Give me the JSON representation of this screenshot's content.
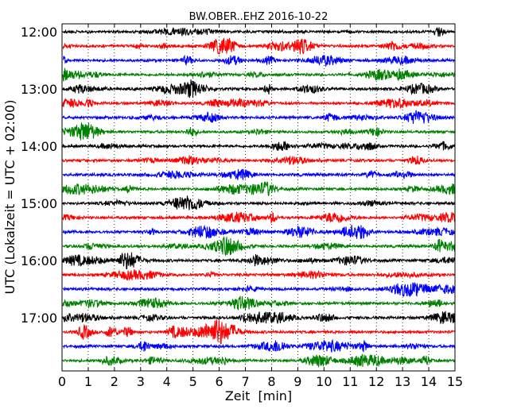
{
  "chart_data": {
    "type": "line",
    "title": "BW.OBER..EHZ 2016-10-22",
    "xlabel": "Zeit  [min]",
    "ylabel": "UTC (Lokalzeit = UTC + 02:00)",
    "xlim": [
      0,
      15
    ],
    "x_ticks": [
      0,
      1,
      2,
      3,
      4,
      5,
      6,
      7,
      8,
      9,
      10,
      11,
      12,
      13,
      14,
      15
    ],
    "y_tick_labels": [
      "12:00",
      "13:00",
      "14:00",
      "15:00",
      "16:00",
      "17:00"
    ],
    "grid": "vertical-dotted",
    "trace_interval_min": 15,
    "traces": [
      {
        "start": "12:00",
        "color": "#000000"
      },
      {
        "start": "12:15",
        "color": "#ff0000"
      },
      {
        "start": "12:30",
        "color": "#0000ff"
      },
      {
        "start": "12:45",
        "color": "#008000"
      },
      {
        "start": "13:00",
        "color": "#000000"
      },
      {
        "start": "13:15",
        "color": "#ff0000"
      },
      {
        "start": "13:30",
        "color": "#0000ff"
      },
      {
        "start": "13:45",
        "color": "#008000"
      },
      {
        "start": "14:00",
        "color": "#000000"
      },
      {
        "start": "14:15",
        "color": "#ff0000"
      },
      {
        "start": "14:30",
        "color": "#0000ff"
      },
      {
        "start": "14:45",
        "color": "#008000"
      },
      {
        "start": "15:00",
        "color": "#000000"
      },
      {
        "start": "15:15",
        "color": "#ff0000"
      },
      {
        "start": "15:30",
        "color": "#0000ff"
      },
      {
        "start": "15:45",
        "color": "#008000"
      },
      {
        "start": "16:00",
        "color": "#000000"
      },
      {
        "start": "16:15",
        "color": "#ff0000"
      },
      {
        "start": "16:30",
        "color": "#0000ff"
      },
      {
        "start": "16:45",
        "color": "#008000"
      },
      {
        "start": "17:00",
        "color": "#000000"
      },
      {
        "start": "17:15",
        "color": "#ff0000"
      },
      {
        "start": "17:30",
        "color": "#0000ff"
      },
      {
        "start": "17:45",
        "color": "#008000"
      }
    ]
  }
}
